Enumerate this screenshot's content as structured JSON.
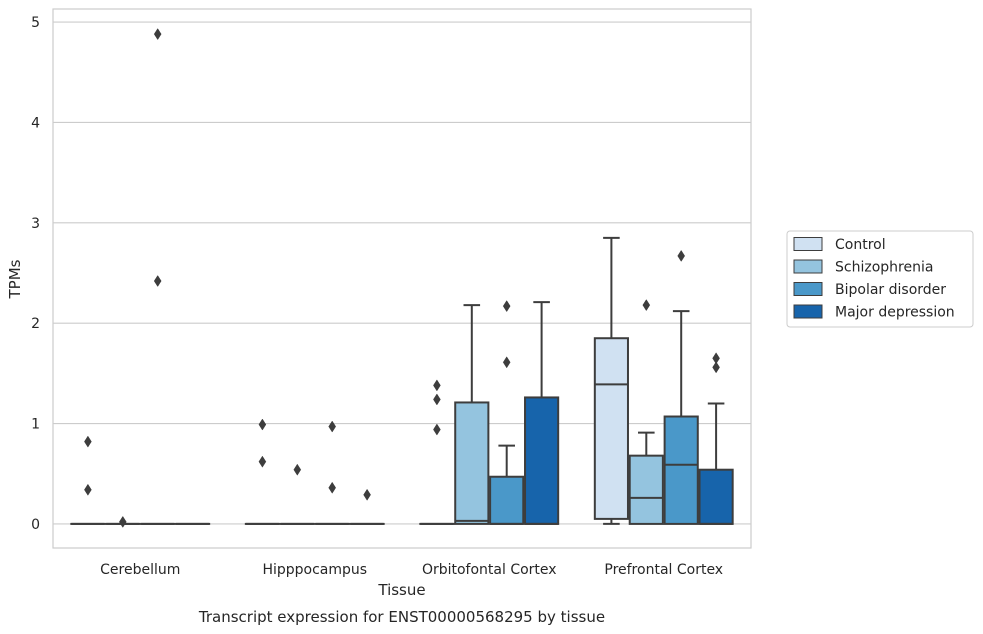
{
  "chart_data": {
    "type": "box",
    "title": "",
    "caption": "Transcript expression for ENST00000568295 by tissue",
    "xlabel": "Tissue",
    "ylabel": "TPMs",
    "ylim": [
      -0.24,
      5.13
    ],
    "yticks": [
      "0",
      "1",
      "2",
      "3",
      "4",
      "5"
    ],
    "grid": "horizontal",
    "legend_position": "outside-right",
    "categories": [
      "Cerebellum",
      "Hipppocampus",
      "Orbitofontal Cortex",
      "Prefrontal Cortex"
    ],
    "series": [
      {
        "name": "Control",
        "color": "#d0e1f2",
        "boxes": [
          {
            "whisker_low": 0,
            "q1": 0,
            "median": 0,
            "q3": 0,
            "whisker_high": 0,
            "outliers": [
              0.82,
              0.34
            ]
          },
          {
            "whisker_low": 0,
            "q1": 0,
            "median": 0,
            "q3": 0,
            "whisker_high": 0,
            "outliers": [
              0.99,
              0.62
            ]
          },
          {
            "whisker_low": 0,
            "q1": 0,
            "median": 0,
            "q3": 0,
            "whisker_high": 0,
            "outliers": [
              1.38,
              1.24,
              0.94
            ]
          },
          {
            "whisker_low": 0,
            "q1": 0.05,
            "median": 1.39,
            "q3": 1.85,
            "whisker_high": 2.85,
            "outliers": []
          }
        ]
      },
      {
        "name": "Schizophrenia",
        "color": "#94c4df",
        "boxes": [
          {
            "whisker_low": 0,
            "q1": 0,
            "median": 0,
            "q3": 0,
            "whisker_high": 0,
            "outliers": [
              0.02
            ]
          },
          {
            "whisker_low": 0,
            "q1": 0,
            "median": 0,
            "q3": 0,
            "whisker_high": 0,
            "outliers": [
              0.54
            ]
          },
          {
            "whisker_low": 0,
            "q1": 0,
            "median": 0.03,
            "q3": 1.21,
            "whisker_high": 2.18,
            "outliers": []
          },
          {
            "whisker_low": 0,
            "q1": 0,
            "median": 0.26,
            "q3": 0.68,
            "whisker_high": 0.91,
            "outliers": [
              2.18
            ]
          }
        ]
      },
      {
        "name": "Bipolar disorder",
        "color": "#4a98c9",
        "boxes": [
          {
            "whisker_low": 0,
            "q1": 0,
            "median": 0,
            "q3": 0,
            "whisker_high": 0,
            "outliers": [
              4.88,
              2.42
            ]
          },
          {
            "whisker_low": 0,
            "q1": 0,
            "median": 0,
            "q3": 0,
            "whisker_high": 0,
            "outliers": [
              0.97,
              0.36
            ]
          },
          {
            "whisker_low": 0,
            "q1": 0,
            "median": 0,
            "q3": 0.47,
            "whisker_high": 0.78,
            "outliers": [
              2.17,
              1.61
            ]
          },
          {
            "whisker_low": 0,
            "q1": 0,
            "median": 0.59,
            "q3": 1.07,
            "whisker_high": 2.12,
            "outliers": [
              2.67
            ]
          }
        ]
      },
      {
        "name": "Major depression",
        "color": "#1764ab",
        "boxes": [
          {
            "whisker_low": 0,
            "q1": 0,
            "median": 0,
            "q3": 0,
            "whisker_high": 0,
            "outliers": []
          },
          {
            "whisker_low": 0,
            "q1": 0,
            "median": 0,
            "q3": 0,
            "whisker_high": 0,
            "outliers": [
              0.29
            ]
          },
          {
            "whisker_low": 0,
            "q1": 0,
            "median": 0,
            "q3": 1.26,
            "whisker_high": 2.21,
            "outliers": []
          },
          {
            "whisker_low": 0,
            "q1": 0,
            "median": 0,
            "q3": 0.54,
            "whisker_high": 1.2,
            "outliers": [
              1.65,
              1.56
            ]
          }
        ]
      }
    ]
  }
}
